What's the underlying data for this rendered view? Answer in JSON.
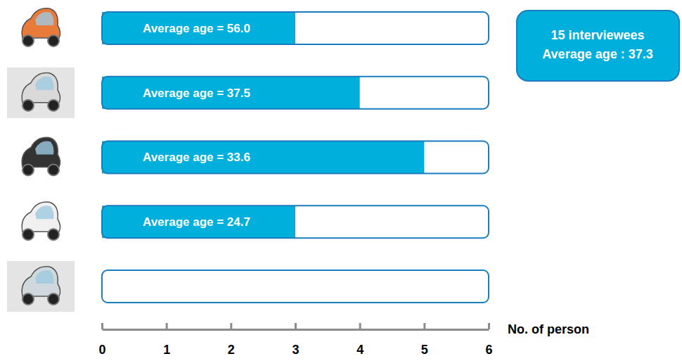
{
  "chart_data": {
    "type": "bar",
    "orientation": "horizontal",
    "categories": [
      null,
      null,
      null,
      null,
      null
    ],
    "values": [
      3,
      4,
      5,
      3,
      0
    ],
    "bar_labels": [
      "Average age = 56.0",
      "Average age = 37.5",
      "Average age = 33.6",
      "Average age = 24.7",
      null
    ],
    "color": "#00afdb",
    "xlim": [
      0,
      6
    ],
    "xticks": [
      0,
      1,
      2,
      3,
      4,
      5,
      6
    ],
    "x_label": "No. of person",
    "annotations": [
      "15 interviewees",
      "Average age : 37.3"
    ],
    "tick_labels": "x"
  }
}
